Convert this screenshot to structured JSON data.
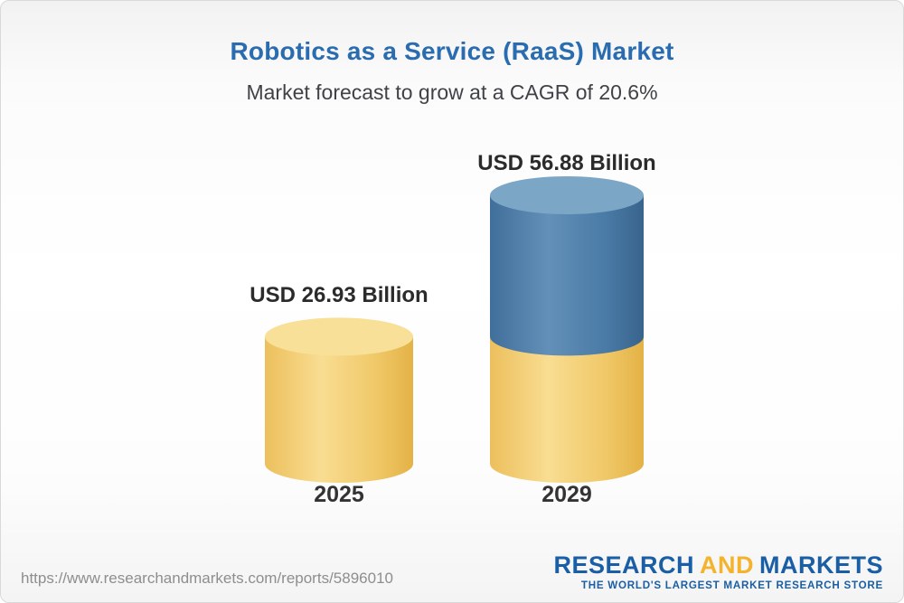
{
  "header": {
    "title": "Robotics as a Service (RaaS) Market",
    "subtitle": "Market forecast to grow at a CAGR of 20.6%"
  },
  "chart_data": {
    "type": "bar",
    "subtype": "3d-cylinder",
    "categories": [
      "2025",
      "2029"
    ],
    "values": [
      26.93,
      56.88
    ],
    "value_labels": [
      "USD 26.93 Billion",
      "USD 56.88 Billion"
    ],
    "unit": "USD Billion",
    "title": "Robotics as a Service (RaaS) Market",
    "xlabel": "",
    "ylabel": "",
    "ylim": [
      0,
      56.88
    ],
    "grid": false,
    "legend": false,
    "layout_hint": "second bar stacked: base segment equals 2025 value in yellow, growth segment in blue on top",
    "colors": {
      "bar_yellow": "#f5cf6e",
      "bar_yellow_top": "#f8e098",
      "bar_blue": "#4a7ba6",
      "bar_blue_top": "#7ba6c6"
    }
  },
  "footer": {
    "url": "https://www.researchandmarkets.com/reports/5896010",
    "logo": {
      "part1": "RESEARCH",
      "part2": "AND",
      "part3": "MARKETS",
      "tagline": "THE WORLD'S LARGEST MARKET RESEARCH STORE"
    }
  }
}
